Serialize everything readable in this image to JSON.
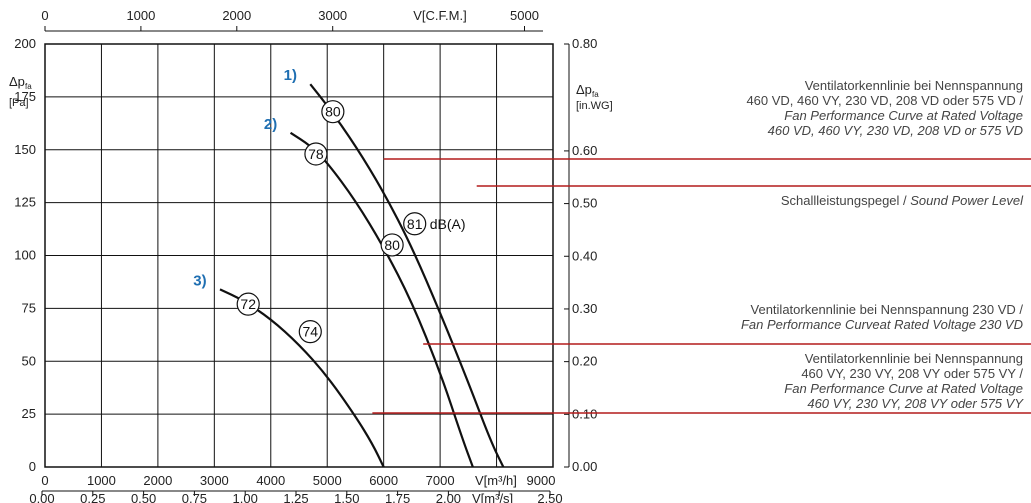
{
  "chart_data": {
    "type": "line",
    "x_axis": {
      "label_unit": "V[m³/h]",
      "ticks": [
        0,
        1000,
        2000,
        3000,
        4000,
        5000,
        6000,
        7000,
        9000
      ],
      "range": [
        0,
        9000
      ]
    },
    "x_axis_cfm": {
      "label_unit": "V[C.F.M.]",
      "ticks": [
        0,
        1000,
        2000,
        3000,
        5000
      ],
      "range": [
        0,
        5297
      ]
    },
    "x_axis_m3s": {
      "label_unit": "V[m³/s]",
      "ticks": [
        "0.00",
        "0.25",
        "0.50",
        "0.75",
        "1.00",
        "1.25",
        "1.50",
        "1.75",
        "2.00",
        "2.50"
      ],
      "range": [
        0,
        2.5
      ]
    },
    "y_axis": {
      "label_symbol": "Δp",
      "label_sub": "fa",
      "unit": "[Pa]",
      "ticks": [
        0,
        25,
        50,
        75,
        100,
        125,
        150,
        175,
        200
      ],
      "range": [
        0,
        200
      ]
    },
    "y_axis_inwg": {
      "label_symbol": "Δp",
      "label_sub": "fa",
      "unit": "[in.WG]",
      "ticks": [
        "0.00",
        "0.10",
        "0.20",
        "0.30",
        "0.40",
        "0.50",
        "0.60",
        "0.80"
      ],
      "range": [
        0,
        0.8
      ]
    },
    "grid": true,
    "series": [
      {
        "name": "1)",
        "color": "#1f6fb2",
        "points": [
          [
            4700,
            181
          ],
          [
            5000,
            171
          ],
          [
            5500,
            152
          ],
          [
            6000,
            130
          ],
          [
            6500,
            104
          ],
          [
            7000,
            73
          ],
          [
            7500,
            40
          ],
          [
            7900,
            12
          ],
          [
            8120,
            0
          ]
        ],
        "sound_labels": [
          {
            "x": 5100,
            "y": 168,
            "value": "80"
          },
          {
            "x": 6550,
            "y": 115,
            "value": "81"
          }
        ]
      },
      {
        "name": "2)",
        "color": "#1f6fb2",
        "points": [
          [
            4350,
            158
          ],
          [
            4700,
            152
          ],
          [
            5000,
            144
          ],
          [
            5500,
            126
          ],
          [
            6000,
            104
          ],
          [
            6500,
            78
          ],
          [
            7000,
            45
          ],
          [
            7400,
            13
          ],
          [
            7580,
            0
          ]
        ],
        "sound_labels": [
          {
            "x": 4800,
            "y": 148,
            "value": "78"
          },
          {
            "x": 6150,
            "y": 105,
            "value": "80"
          }
        ]
      },
      {
        "name": "3)",
        "color": "#1f6fb2",
        "points": [
          [
            3100,
            84
          ],
          [
            3500,
            79
          ],
          [
            4000,
            70
          ],
          [
            4500,
            58
          ],
          [
            5000,
            43
          ],
          [
            5500,
            24
          ],
          [
            5800,
            11
          ],
          [
            6000,
            0
          ]
        ],
        "sound_labels": [
          {
            "x": 3600,
            "y": 77,
            "value": "72"
          },
          {
            "x": 4700,
            "y": 64,
            "value": "74"
          }
        ]
      }
    ]
  },
  "annotations": [
    {
      "id": "rated-voltage-all",
      "lines_roman": [
        "Ventilatorkennlinie bei Nennspannung",
        "460 VD, 460 VY, 230 VD, 208 VD oder 575 VD /"
      ],
      "lines_italic": [
        "Fan Performance Curve at Rated Voltage",
        "460 VD, 460 VY, 230 VD, 208 VD or 575 VD"
      ],
      "target": [
        6000,
        159
      ]
    },
    {
      "id": "sound-power",
      "lines_roman": [
        "Schallleistungspegel / "
      ],
      "lines_italic": [
        "Sound Power Level"
      ],
      "label": "dB(A)",
      "target": [
        6550,
        115
      ]
    },
    {
      "id": "rated-voltage-230",
      "lines_roman": [
        "Ventilatorkennlinie bei Nennspannung 230 VD /"
      ],
      "lines_italic": [
        "Fan Performance Curveat Rated Voltage 230 VD"
      ],
      "target": [
        6700,
        64
      ]
    },
    {
      "id": "rated-voltage-vy",
      "lines_roman": [
        "Ventilatorkennlinie bei Nennspannung",
        "460 VY, 230 VY, 208 VY oder 575 VY /"
      ],
      "lines_italic": [
        "Fan Performance Curve at Rated Voltage",
        "460 VY, 230 VY, 208 VY oder 575 VY"
      ],
      "target": [
        5800,
        18
      ]
    }
  ],
  "colors": {
    "annotation_line": "#b31b1b",
    "curve": "#111111",
    "grid": "#111111",
    "series_label": "#1f6fb2"
  }
}
